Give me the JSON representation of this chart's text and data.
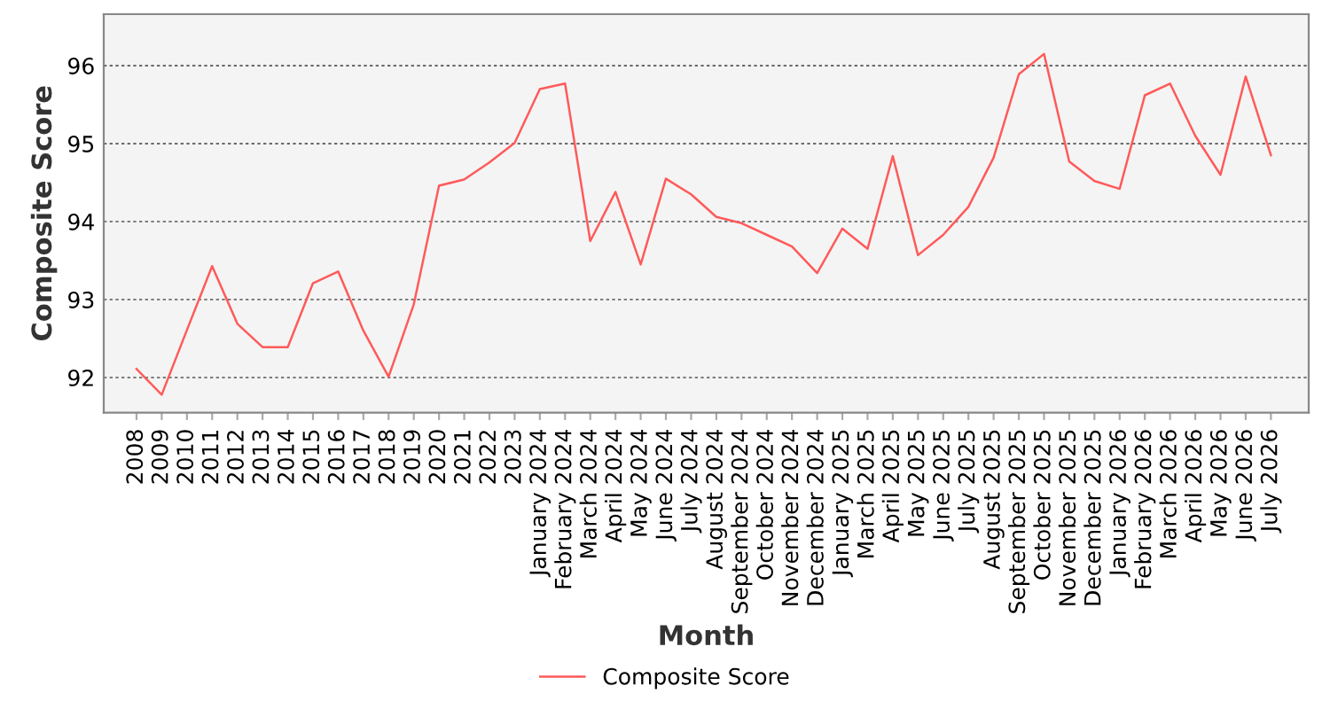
{
  "chart_data": {
    "type": "line",
    "xlabel": "Month",
    "ylabel": "Composite Score",
    "categories": [
      "2008",
      "2009",
      "2010",
      "2011",
      "2012",
      "2013",
      "2014",
      "2015",
      "2016",
      "2017",
      "2018",
      "2019",
      "2020",
      "2021",
      "2022",
      "2023",
      "January 2024",
      "February 2024",
      "March 2024",
      "April 2024",
      "May 2024",
      "June 2024",
      "July 2024",
      "August 2024",
      "September 2024",
      "October 2024",
      "November 2024",
      "December 2024",
      "January 2025",
      "March 2025",
      "April 2025",
      "May 2025",
      "June 2025",
      "July 2025",
      "August 2025",
      "September 2025",
      "October 2025",
      "November 2025",
      "December 2025",
      "January 2026",
      "February 2026",
      "March 2026",
      "April 2026",
      "May 2026",
      "June 2026",
      "July 2026"
    ],
    "series": [
      {
        "name": "Composite Score",
        "color": "#ff5a5a",
        "values": [
          92.11,
          91.78,
          92.61,
          93.43,
          92.69,
          92.39,
          92.39,
          93.21,
          93.36,
          92.6,
          92.01,
          92.94,
          94.46,
          94.54,
          94.76,
          95.01,
          95.7,
          95.77,
          93.75,
          94.38,
          93.45,
          94.55,
          94.35,
          94.06,
          93.98,
          93.83,
          93.68,
          93.34,
          93.91,
          93.65,
          94.84,
          93.57,
          93.83,
          94.19,
          94.82,
          95.89,
          96.15,
          94.77,
          94.52,
          94.42,
          95.62,
          95.77,
          95.1,
          94.6,
          95.86,
          94.85
        ]
      }
    ],
    "ylim": [
      91.55,
      96.66
    ],
    "yticks": [
      92,
      93,
      94,
      95,
      96
    ],
    "grid": "y",
    "legend": "bottom",
    "marker": "none",
    "line_style": "solid"
  }
}
